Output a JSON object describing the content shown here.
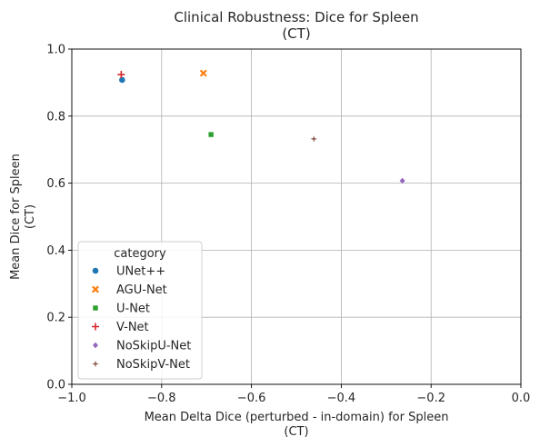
{
  "chart_data": {
    "type": "scatter",
    "title": [
      "Clinical Robustness: Dice for Spleen",
      "(CT)"
    ],
    "xlabel": [
      "Mean Delta Dice (perturbed - in-domain) for Spleen",
      "(CT)"
    ],
    "ylabel": [
      "Mean Dice for Spleen",
      "(CT)"
    ],
    "xlim": [
      -1.0,
      0.0
    ],
    "ylim": [
      0.0,
      1.0
    ],
    "xticks": [
      -1.0,
      -0.8,
      -0.6,
      -0.4,
      -0.2,
      0.0
    ],
    "xtick_labels": [
      "−1.0",
      "−0.8",
      "−0.6",
      "−0.4",
      "−0.2",
      "0.0"
    ],
    "yticks": [
      0.0,
      0.2,
      0.4,
      0.6,
      0.8,
      1.0
    ],
    "ytick_labels": [
      "0.0",
      "0.2",
      "0.4",
      "0.6",
      "0.8",
      "1.0"
    ],
    "grid": true,
    "legend": {
      "title": "category",
      "placement": "lower-left"
    },
    "series": [
      {
        "name": "UNet++",
        "marker": "circle",
        "color": "#1f77b4",
        "x": -0.888,
        "y": 0.908
      },
      {
        "name": "AGU-Net",
        "marker": "x",
        "color": "#ff7f0e",
        "x": -0.707,
        "y": 0.928
      },
      {
        "name": "U-Net",
        "marker": "square",
        "color": "#2ca02c",
        "x": -0.69,
        "y": 0.745
      },
      {
        "name": "V-Net",
        "marker": "plus",
        "color": "#d62728",
        "x": -0.89,
        "y": 0.924
      },
      {
        "name": "NoSkipU-Net",
        "marker": "diamond",
        "color": "#9467bd",
        "x": -0.264,
        "y": 0.607
      },
      {
        "name": "NoSkipV-Net",
        "marker": "star",
        "color": "#8c564b",
        "x": -0.461,
        "y": 0.732
      }
    ]
  }
}
